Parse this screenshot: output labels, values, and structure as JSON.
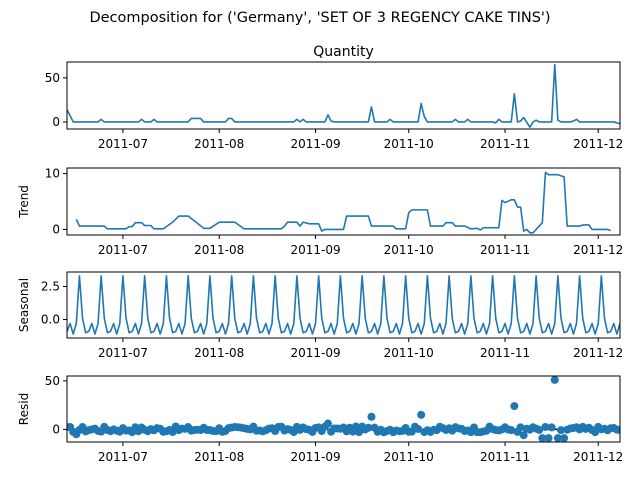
{
  "chart_data": {
    "type": "line",
    "suptitle": "Decomposition for ('Germany', 'SET OF 3 REGENCY CAKE TINS')",
    "x_start": "2011-06-13",
    "x_end": "2011-12-08",
    "x_ticks": [
      "2011-07",
      "2011-08",
      "2011-09",
      "2011-10",
      "2011-11",
      "2011-12"
    ],
    "panels": [
      {
        "id": "observed",
        "title": "Quantity",
        "ylabel": "",
        "kind": "line",
        "ylim": [
          -8,
          68
        ],
        "yticks": [
          0,
          50
        ],
        "color": "#1f77b4",
        "points": [
          [
            "2011-06-13",
            14
          ],
          [
            "2011-06-15",
            0
          ],
          [
            "2011-06-23",
            0
          ],
          [
            "2011-06-24",
            3
          ],
          [
            "2011-06-25",
            0
          ],
          [
            "2011-07-06",
            0
          ],
          [
            "2011-07-07",
            3
          ],
          [
            "2011-07-08",
            0
          ],
          [
            "2011-07-10",
            0
          ],
          [
            "2011-07-11",
            3
          ],
          [
            "2011-07-12",
            0
          ],
          [
            "2011-07-22",
            0
          ],
          [
            "2011-07-23",
            4
          ],
          [
            "2011-07-26",
            4
          ],
          [
            "2011-07-27",
            0
          ],
          [
            "2011-08-03",
            0
          ],
          [
            "2011-08-04",
            4
          ],
          [
            "2011-08-05",
            4
          ],
          [
            "2011-08-06",
            0
          ],
          [
            "2011-08-25",
            0
          ],
          [
            "2011-08-26",
            3
          ],
          [
            "2011-08-27",
            0
          ],
          [
            "2011-08-28",
            3
          ],
          [
            "2011-08-29",
            0
          ],
          [
            "2011-09-04",
            0
          ],
          [
            "2011-09-05",
            8
          ],
          [
            "2011-09-06",
            1
          ],
          [
            "2011-09-07",
            0
          ],
          [
            "2011-09-18",
            0
          ],
          [
            "2011-09-19",
            17
          ],
          [
            "2011-09-20",
            0
          ],
          [
            "2011-09-24",
            0
          ],
          [
            "2011-09-25",
            3
          ],
          [
            "2011-09-26",
            0
          ],
          [
            "2011-10-04",
            0
          ],
          [
            "2011-10-05",
            21
          ],
          [
            "2011-10-06",
            6
          ],
          [
            "2011-10-07",
            0
          ],
          [
            "2011-10-15",
            0
          ],
          [
            "2011-10-16",
            3
          ],
          [
            "2011-10-17",
            0
          ],
          [
            "2011-10-19",
            0
          ],
          [
            "2011-10-20",
            3
          ],
          [
            "2011-10-21",
            0
          ],
          [
            "2011-10-28",
            0
          ],
          [
            "2011-10-29",
            -1
          ],
          [
            "2011-10-30",
            3
          ],
          [
            "2011-10-31",
            0
          ],
          [
            "2011-11-03",
            0
          ],
          [
            "2011-11-04",
            32
          ],
          [
            "2011-11-05",
            0
          ],
          [
            "2011-11-06",
            1
          ],
          [
            "2011-11-07",
            5
          ],
          [
            "2011-11-09",
            -6
          ],
          [
            "2011-11-10",
            0
          ],
          [
            "2011-11-11",
            2
          ],
          [
            "2011-11-12",
            0
          ],
          [
            "2011-11-16",
            0
          ],
          [
            "2011-11-17",
            65
          ],
          [
            "2011-11-18",
            2
          ],
          [
            "2011-11-19",
            0
          ],
          [
            "2011-11-22",
            0
          ],
          [
            "2011-11-23",
            1
          ],
          [
            "2011-11-24",
            3
          ],
          [
            "2011-11-25",
            0
          ],
          [
            "2011-12-06",
            0
          ],
          [
            "2011-12-08",
            -2
          ]
        ]
      },
      {
        "id": "trend",
        "title": "",
        "ylabel": "Trend",
        "kind": "line",
        "ylim": [
          -1,
          11
        ],
        "yticks": [
          0,
          10
        ],
        "color": "#1f77b4",
        "points": [
          [
            "2011-06-16",
            1.8
          ],
          [
            "2011-06-17",
            0.6
          ],
          [
            "2011-06-25",
            0.6
          ],
          [
            "2011-06-26",
            0.1
          ],
          [
            "2011-07-02",
            0.1
          ],
          [
            "2011-07-03",
            0.5
          ],
          [
            "2011-07-04",
            0.5
          ],
          [
            "2011-07-05",
            1.2
          ],
          [
            "2011-07-07",
            1.2
          ],
          [
            "2011-07-08",
            0.7
          ],
          [
            "2011-07-10",
            0.7
          ],
          [
            "2011-07-11",
            0.1
          ],
          [
            "2011-07-14",
            0.1
          ],
          [
            "2011-07-17",
            1.3
          ],
          [
            "2011-07-19",
            2.4
          ],
          [
            "2011-07-22",
            2.4
          ],
          [
            "2011-07-27",
            0.2
          ],
          [
            "2011-07-29",
            0.2
          ],
          [
            "2011-08-01",
            1.3
          ],
          [
            "2011-08-06",
            1.3
          ],
          [
            "2011-08-09",
            0.1
          ],
          [
            "2011-08-21",
            0.1
          ],
          [
            "2011-08-22",
            0.6
          ],
          [
            "2011-08-23",
            1.3
          ],
          [
            "2011-08-26",
            1.3
          ],
          [
            "2011-08-27",
            0.6
          ],
          [
            "2011-08-28",
            1.3
          ],
          [
            "2011-08-30",
            1.0
          ],
          [
            "2011-09-02",
            1.0
          ],
          [
            "2011-09-03",
            -0.3
          ],
          [
            "2011-09-04",
            0.0
          ],
          [
            "2011-09-10",
            0.0
          ],
          [
            "2011-09-11",
            2.4
          ],
          [
            "2011-09-18",
            2.4
          ],
          [
            "2011-09-19",
            0.6
          ],
          [
            "2011-09-26",
            0.6
          ],
          [
            "2011-09-27",
            0.1
          ],
          [
            "2011-09-30",
            0.1
          ],
          [
            "2011-10-01",
            3.0
          ],
          [
            "2011-10-02",
            3.5
          ],
          [
            "2011-10-07",
            3.5
          ],
          [
            "2011-10-08",
            0.6
          ],
          [
            "2011-10-12",
            0.6
          ],
          [
            "2011-10-13",
            1.2
          ],
          [
            "2011-10-15",
            1.2
          ],
          [
            "2011-10-16",
            0.6
          ],
          [
            "2011-10-19",
            0.6
          ],
          [
            "2011-10-21",
            0.1
          ],
          [
            "2011-10-23",
            0.2
          ],
          [
            "2011-10-24",
            -0.1
          ],
          [
            "2011-10-25",
            0.3
          ],
          [
            "2011-10-30",
            0.3
          ],
          [
            "2011-10-31",
            5.2
          ],
          [
            "2011-11-01",
            4.8
          ],
          [
            "2011-11-03",
            5.3
          ],
          [
            "2011-11-04",
            5.3
          ],
          [
            "2011-11-05",
            4.0
          ],
          [
            "2011-11-06",
            4.0
          ],
          [
            "2011-11-07",
            -0.3
          ],
          [
            "2011-11-08",
            0.0
          ],
          [
            "2011-11-09",
            -0.6
          ],
          [
            "2011-11-10",
            -0.6
          ],
          [
            "2011-11-13",
            1.2
          ],
          [
            "2011-11-14",
            10.2
          ],
          [
            "2011-11-15",
            9.8
          ],
          [
            "2011-11-18",
            9.8
          ],
          [
            "2011-11-20",
            9.4
          ],
          [
            "2011-11-21",
            0.6
          ],
          [
            "2011-11-25",
            0.6
          ],
          [
            "2011-11-26",
            0.8
          ],
          [
            "2011-11-28",
            0.8
          ],
          [
            "2011-11-29",
            0.0
          ],
          [
            "2011-12-04",
            0.0
          ],
          [
            "2011-12-05",
            -0.2
          ]
        ]
      },
      {
        "id": "seasonal",
        "title": "",
        "ylabel": "Seasonal",
        "kind": "periodic",
        "ylim": [
          -1.4,
          3.6
        ],
        "yticks": [
          -0.0,
          2.5
        ],
        "ytick_labels": [
          "0.0",
          "2.5"
        ],
        "color": "#1f77b4",
        "period_days": 7,
        "pattern": [
          3.3,
          0.1,
          -1.0,
          -0.9,
          -0.3,
          -1.1,
          -0.3
        ],
        "pattern_start": "2011-06-17"
      },
      {
        "id": "resid",
        "title": "",
        "ylabel": "Resid",
        "kind": "scatter",
        "ylim": [
          -13,
          55
        ],
        "yticks": [
          0,
          50
        ],
        "color": "#1f77b4",
        "zero_line": true,
        "notable_points": [
          [
            "2011-09-05",
            6
          ],
          [
            "2011-09-19",
            13
          ],
          [
            "2011-10-05",
            15
          ],
          [
            "2011-11-04",
            24
          ],
          [
            "2011-11-17",
            51
          ],
          [
            "2011-11-13",
            -9
          ],
          [
            "2011-11-15",
            -9
          ],
          [
            "2011-11-18",
            -9
          ],
          [
            "2011-11-20",
            -9
          ],
          [
            "2011-11-07",
            -6
          ],
          [
            "2011-06-16",
            -5
          ]
        ]
      }
    ]
  }
}
